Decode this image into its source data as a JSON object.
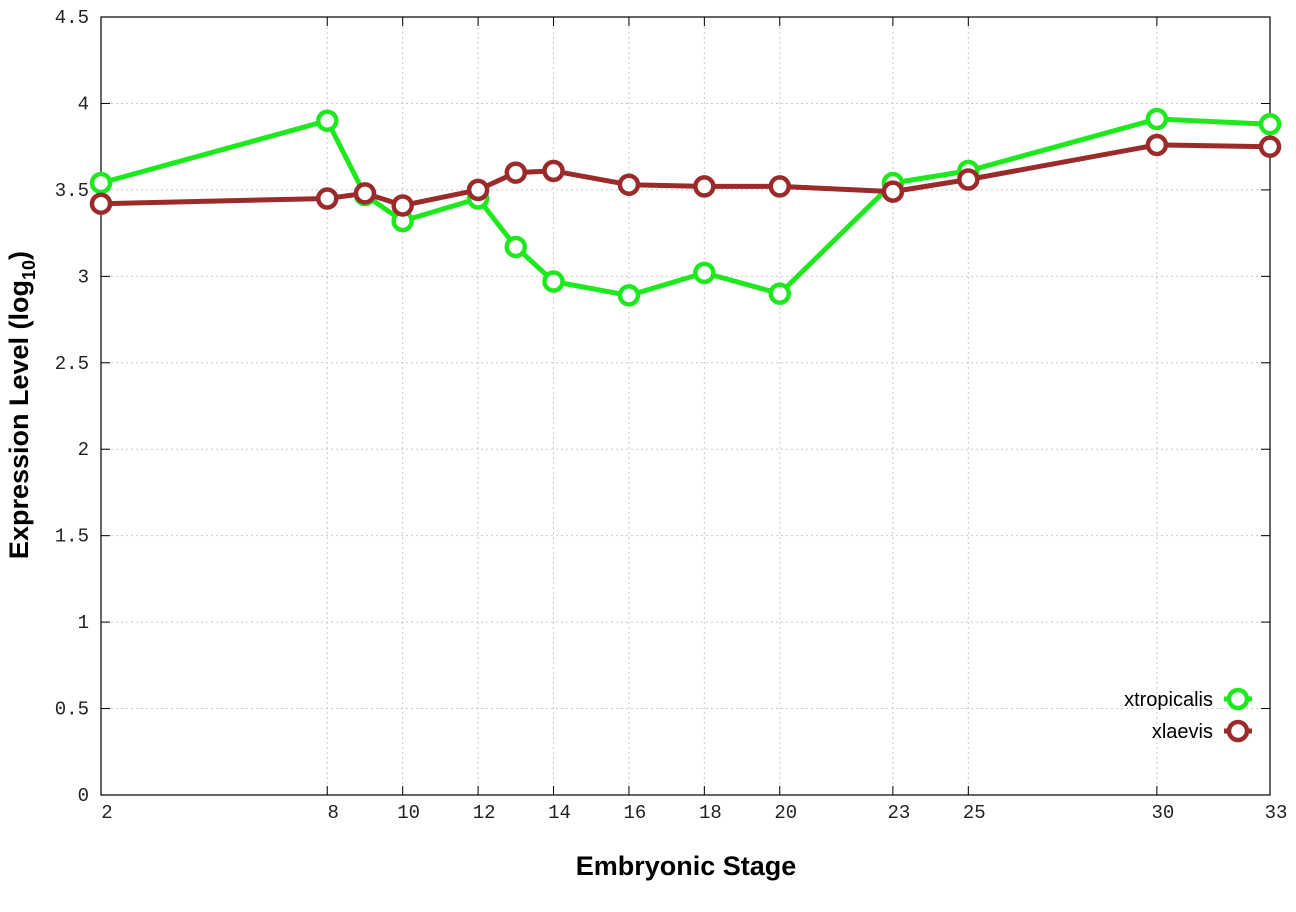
{
  "chart_data": {
    "type": "line",
    "title": "",
    "xlabel": "Embryonic Stage",
    "ylabel_main": "Expression Level (log",
    "ylabel_sub": "10",
    "ylabel_close": ")",
    "x": [
      2,
      8,
      9,
      10,
      12,
      13,
      14,
      16,
      18,
      20,
      23,
      25,
      30,
      33
    ],
    "x_ticks": [
      "2",
      "8",
      "10",
      "12",
      "14",
      "16",
      "18",
      "20",
      "23",
      "25",
      "30",
      "33"
    ],
    "xlim": [
      2,
      33
    ],
    "y_ticks": [
      "0",
      "0.5",
      "1",
      "1.5",
      "2",
      "2.5",
      "3",
      "3.5",
      "4",
      "4.5"
    ],
    "ylim": [
      0,
      4.5
    ],
    "grid": true,
    "legend_position": "bottom-right",
    "series": [
      {
        "name": "xtropicalis",
        "color": "#1ee81e",
        "values": [
          3.54,
          3.9,
          3.47,
          3.32,
          3.45,
          3.17,
          2.97,
          2.89,
          3.02,
          2.9,
          3.54,
          3.61,
          3.91,
          3.88
        ]
      },
      {
        "name": "xlaevis",
        "color": "#9b2b2b",
        "values": [
          3.42,
          3.45,
          3.48,
          3.41,
          3.5,
          3.6,
          3.61,
          3.53,
          3.52,
          3.52,
          3.49,
          3.56,
          3.76,
          3.75
        ]
      }
    ]
  }
}
